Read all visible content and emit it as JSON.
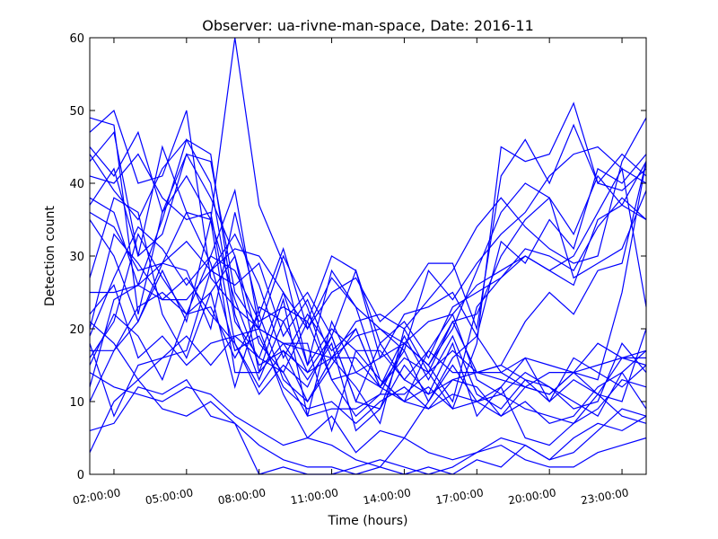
{
  "chart_data": {
    "type": "line",
    "title": "Observer: ua-rivne-man-space, Date: 2016-11",
    "xlabel": "Time (hours)",
    "ylabel": "Detection count",
    "xlim": [
      1,
      24
    ],
    "ylim": [
      0,
      60
    ],
    "x_ticks": [
      "02:00:00",
      "05:00:00",
      "08:00:00",
      "11:00:00",
      "14:00:00",
      "17:00:00",
      "20:00:00",
      "23:00:00"
    ],
    "y_ticks": [
      "0",
      "10",
      "20",
      "30",
      "40",
      "50",
      "60"
    ],
    "series_color": "#0000ff",
    "grid": false,
    "x": [
      1,
      2,
      3,
      4,
      5,
      6,
      7,
      8,
      9,
      10,
      11,
      12,
      13,
      14,
      15,
      16,
      17,
      18,
      19,
      20,
      21,
      22,
      23,
      24
    ],
    "series": [
      {
        "values": [
          49,
          48,
          22,
          36,
          41,
          35,
          24,
          15,
          17,
          10,
          15,
          20,
          12,
          19,
          13,
          19,
          11,
          9,
          13,
          10,
          16,
          14,
          12,
          15
        ]
      },
      {
        "values": [
          47,
          50,
          40,
          41,
          50,
          27,
          23,
          20,
          18,
          13,
          18,
          6,
          9,
          18,
          15,
          21,
          14,
          15,
          21,
          25,
          22,
          28,
          29,
          43
        ]
      },
      {
        "values": [
          45,
          41,
          47,
          36,
          44,
          38,
          30,
          14,
          24,
          8,
          21,
          14,
          12,
          17,
          10,
          15,
          10,
          12,
          16,
          15,
          14,
          13,
          25,
          43
        ]
      },
      {
        "values": [
          44,
          39,
          35,
          42,
          46,
          44,
          22,
          13,
          21,
          14,
          16,
          12,
          7,
          20,
          14,
          17,
          14,
          15,
          13,
          12,
          9,
          10,
          18,
          14
        ]
      },
      {
        "values": [
          41,
          40,
          44,
          38,
          35,
          36,
          18,
          11,
          15,
          12,
          19,
          10,
          18,
          13,
          17,
          22,
          13,
          11,
          14,
          12,
          10,
          8,
          14,
          9
        ]
      },
      {
        "values": [
          38,
          36,
          26,
          35,
          46,
          40,
          21,
          16,
          25,
          15,
          20,
          17,
          13,
          10,
          17,
          14,
          14,
          13,
          12,
          11,
          14,
          18,
          16,
          15
        ]
      },
      {
        "values": [
          37,
          42,
          30,
          45,
          36,
          29,
          17,
          19,
          12,
          9,
          10,
          7,
          10,
          12,
          9,
          11,
          10,
          11,
          9,
          8,
          7,
          9,
          13,
          12
        ]
      },
      {
        "values": [
          43,
          47,
          30,
          33,
          44,
          43,
          25,
          20,
          11,
          5,
          8,
          3,
          6,
          5,
          10,
          16,
          19,
          14,
          16,
          10,
          13,
          11,
          16,
          17
        ]
      },
      {
        "values": [
          35,
          30,
          21,
          28,
          21,
          35,
          14,
          14,
          18,
          18,
          6,
          17,
          17,
          13,
          11,
          18,
          8,
          12,
          5,
          4,
          7,
          11,
          8,
          7
        ]
      },
      {
        "values": [
          25,
          25,
          26,
          24,
          27,
          22,
          18,
          12,
          17,
          14,
          19,
          10,
          9,
          15,
          11,
          13,
          14,
          14,
          12,
          14,
          14,
          11,
          10,
          20
        ]
      },
      {
        "values": [
          22,
          26,
          16,
          19,
          15,
          18,
          19,
          16,
          14,
          8,
          9,
          9,
          11,
          11,
          14,
          9,
          10,
          8,
          10,
          7,
          8,
          12,
          14,
          17
        ]
      },
      {
        "values": [
          17,
          17,
          23,
          25,
          22,
          23,
          16,
          22,
          13,
          10,
          16,
          16,
          12,
          10,
          9,
          13,
          12,
          8,
          12,
          11,
          14,
          15,
          16,
          16
        ]
      },
      {
        "values": [
          14,
          12,
          11,
          10,
          12,
          11,
          8,
          6,
          4,
          5,
          4,
          2,
          1,
          5,
          3,
          2,
          3,
          5,
          4,
          2,
          3,
          6,
          9,
          8
        ]
      },
      {
        "values": [
          6,
          7,
          12,
          11,
          13,
          8,
          7,
          4,
          2,
          1,
          1,
          0,
          1,
          0,
          1,
          0,
          2,
          1,
          4,
          2,
          5,
          7,
          6,
          8
        ]
      },
      {
        "values": [
          3,
          10,
          13,
          9,
          8,
          10,
          7,
          0,
          1,
          0,
          0,
          1,
          2,
          1,
          0,
          1,
          3,
          4,
          2,
          1,
          1,
          3,
          4,
          5
        ]
      },
      {
        "values": [
          27,
          38,
          36,
          22,
          16,
          25,
          30,
          18,
          14,
          21,
          13,
          8,
          11,
          18,
          15,
          10,
          23,
          27,
          31,
          30,
          28,
          34,
          38,
          35
        ]
      },
      {
        "values": [
          18,
          8,
          15,
          16,
          17,
          28,
          33,
          26,
          16,
          22,
          17,
          20,
          12,
          16,
          14,
          21,
          22,
          30,
          35,
          38,
          27,
          29,
          31,
          39
        ]
      },
      {
        "values": [
          10,
          17,
          21,
          29,
          28,
          20,
          36,
          22,
          31,
          20,
          27,
          23,
          20,
          17,
          28,
          24,
          29,
          33,
          36,
          41,
          44,
          45,
          42,
          40
        ]
      },
      {
        "values": [
          15,
          22,
          19,
          13,
          22,
          25,
          12,
          23,
          21,
          25,
          19,
          28,
          16,
          22,
          23,
          25,
          19,
          32,
          29,
          35,
          31,
          42,
          40,
          44
        ]
      },
      {
        "values": [
          21,
          18,
          13,
          16,
          19,
          15,
          19,
          20,
          18,
          17,
          16,
          19,
          20,
          18,
          15,
          20,
          28,
          36,
          40,
          38,
          33,
          41,
          37,
          35
        ]
      },
      {
        "values": [
          16,
          21,
          33,
          27,
          22,
          30,
          28,
          21,
          23,
          21,
          30,
          28,
          18,
          21,
          16,
          23,
          25,
          27,
          30,
          28,
          30,
          36,
          42,
          23
        ]
      },
      {
        "values": [
          20,
          33,
          29,
          24,
          24,
          28,
          26,
          29,
          19,
          24,
          16,
          21,
          22,
          20,
          24,
          28,
          34,
          38,
          34,
          31,
          29,
          30,
          43,
          49
        ]
      },
      {
        "values": [
          19,
          27,
          34,
          31,
          26,
          30,
          39,
          20,
          30,
          23,
          13,
          14,
          16,
          18,
          21,
          22,
          26,
          28,
          30,
          28,
          26,
          35,
          37,
          43
        ]
      },
      {
        "values": [
          36,
          34,
          28,
          29,
          36,
          35,
          60,
          37,
          29,
          15,
          28,
          23,
          13,
          10,
          12,
          9,
          18,
          45,
          43,
          44,
          51,
          40,
          44,
          41
        ]
      },
      {
        "values": [
          12,
          24,
          26,
          29,
          32,
          28,
          31,
          30,
          25,
          20,
          25,
          27,
          21,
          24,
          29,
          29,
          20,
          41,
          46,
          40,
          48,
          40,
          39,
          42
        ]
      }
    ]
  }
}
